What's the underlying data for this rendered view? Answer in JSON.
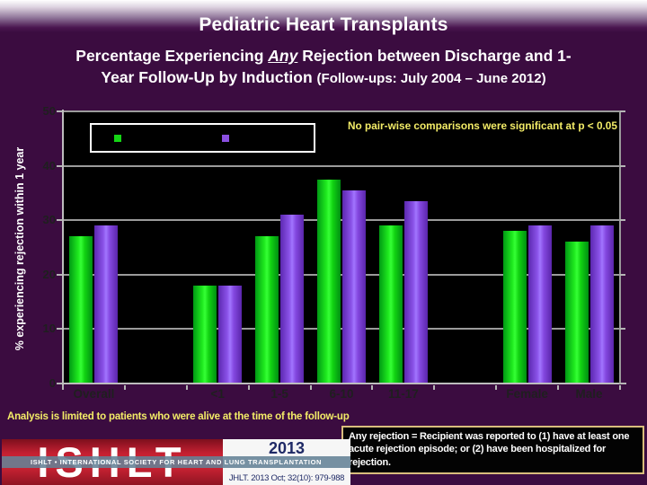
{
  "slide": {
    "title": "Pediatric Heart Transplants",
    "subtitle": {
      "pre": "Percentage Experiencing ",
      "emphasis": "Any",
      "post": " Rejection between Discharge and 1-",
      "line2": "Year Follow-Up by Induction ",
      "paren": "(Follow-ups: July 2004 – June 2012)"
    }
  },
  "chart_data": {
    "type": "bar",
    "title": "Percentage Experiencing Any Rejection between Discharge and 1-Year Follow-Up by Induction (Follow-ups: July 2004 – June 2012)",
    "xlabel": "",
    "ylabel": "% experiencing rejection within 1 year",
    "ylim": [
      0,
      50
    ],
    "yticks": [
      0,
      10,
      20,
      30,
      40,
      50
    ],
    "grid": true,
    "plot_background": "#000000",
    "categories": [
      "Overall",
      "<1",
      "1-5",
      "6-10",
      "11-17",
      "Female",
      "Male"
    ],
    "category_slots": [
      0,
      2,
      3,
      4,
      5,
      7,
      8
    ],
    "total_slots": 9,
    "series": [
      {
        "name": "green-series",
        "color": "#15d515",
        "values": [
          27,
          18,
          27,
          37.5,
          29,
          28,
          26
        ]
      },
      {
        "name": "purple-series",
        "color": "#8a4fe0",
        "values": [
          29,
          18,
          31,
          35.5,
          33.5,
          29,
          29
        ]
      }
    ],
    "legend": {
      "position": "top-left-inside",
      "labels_visible": false,
      "swatch_colors": [
        "#15d515",
        "#8a4fe0"
      ]
    },
    "annotation": "No pair-wise comparisons were significant at p < 0.05"
  },
  "footnote": "Analysis is limited to patients who were alive at the time of the follow-up",
  "definition": "Any rejection  = Recipient was reported to  (1) have at least one acute rejection episode; or (2) have been hospitalized for rejection.",
  "banner": {
    "logo_text": "ISHLT",
    "band_text": "ISHLT • INTERNATIONAL SOCIETY FOR HEART AND LUNG TRANSPLANTATION",
    "year": "2013",
    "citation": "JHLT. 2013 Oct; 32(10): 979-988"
  },
  "colors": {
    "background": "#3b0c40",
    "plot_background": "#000000",
    "bar_green": "#15d515",
    "bar_purple": "#8a4fe0",
    "note_yellow": "#f3ec67",
    "grid_gray": "#9b9b9b",
    "banner_red": "#c32031",
    "banner_navy": "#1f2a66"
  }
}
